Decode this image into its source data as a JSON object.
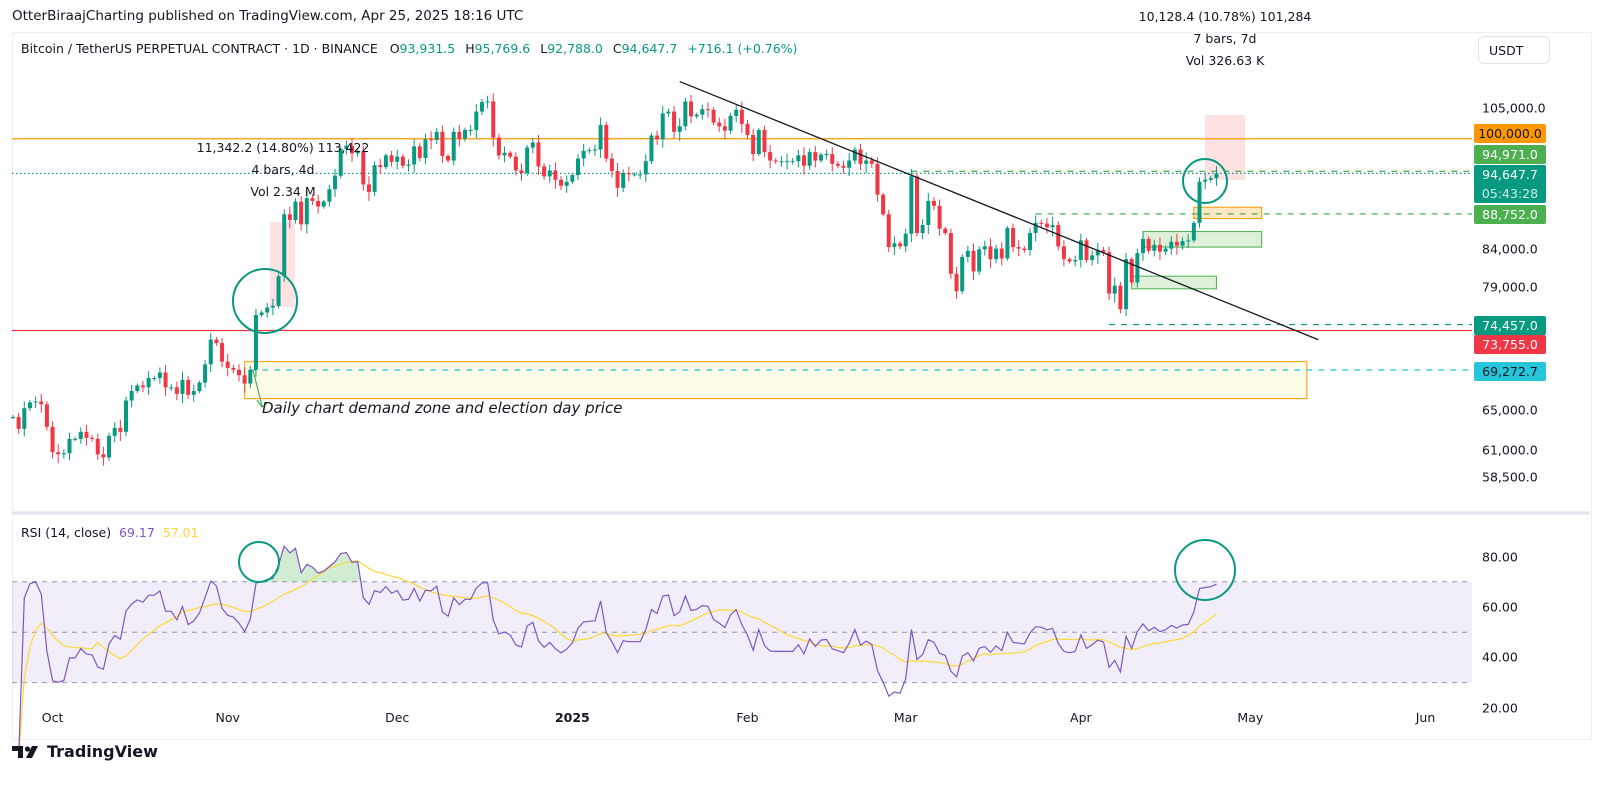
{
  "header": {
    "published": "OtterBiraajCharting published on TradingView.com, Apr 25, 2025 18:16 UTC",
    "symbol": "Bitcoin / TetherUS PERPETUAL CONTRACT · 1D · BINANCE",
    "ohlc": {
      "o_label": "O",
      "o": "93,931.5",
      "h_label": "H",
      "h": "95,769.6",
      "l_label": "L",
      "l": "92,788.0",
      "c_label": "C",
      "c": "94,647.7",
      "change": "+716.1 (+0.76%)"
    },
    "currency": "USDT"
  },
  "colors": {
    "up": "#089981",
    "down": "#f23645",
    "rsi": "#7e57c2",
    "rsi_ma": "#fdd835",
    "orange": "#ff9800",
    "cyan": "#26c6da",
    "green_tag": "#4caf50"
  },
  "price_axis": {
    "scale": "log",
    "labels": [
      "105,000.0",
      "84,000.0",
      "79,000.0",
      "65,000.0",
      "61,000.0",
      "58,500.0"
    ],
    "label_values": [
      105000,
      84000,
      79000,
      65000,
      61000,
      58500
    ],
    "tags": [
      {
        "text": "100,000.0",
        "color": "#ff9800",
        "text_color": "#131722"
      },
      {
        "text": "94,971.0",
        "color": "#4caf50"
      },
      {
        "text": "94,647.7",
        "sub": "05:43:28",
        "color": "#089981"
      },
      {
        "text": "88,752.0",
        "color": "#4caf50"
      },
      {
        "text": "74,457.0",
        "color": "#089981"
      },
      {
        "text": "73,755.0",
        "color": "#f23645"
      },
      {
        "text": "69,272.7",
        "color": "#26c6da",
        "text_color": "#131722"
      }
    ]
  },
  "levels": [
    {
      "price": 100000,
      "style": "solid",
      "color": "#ff9800"
    },
    {
      "price": 73755,
      "style": "solid",
      "color": "#f23645"
    },
    {
      "price": 94647.7,
      "style": "dotted",
      "color": "#089981"
    },
    {
      "price": 94971,
      "style": "dashed",
      "color": "#4caf50",
      "from": "2025-03-02"
    },
    {
      "price": 88752,
      "style": "dashed",
      "color": "#4caf50",
      "from": "2025-03-24"
    },
    {
      "price": 74457,
      "style": "dashed",
      "color": "#089981",
      "from": "2025-04-06"
    },
    {
      "price": 69272.7,
      "style": "dashed",
      "color": "#26c6da",
      "from": "2024-11-05"
    }
  ],
  "annotations": {
    "demand_zone_note": "Daily chart demand zone and election day price",
    "measure_1": {
      "line1": "11,342.2 (14.80%) 113,422",
      "line2": "4 bars, 4d",
      "line3": "Vol 2.34 M"
    },
    "measure_2": {
      "line1": "10,128.4 (10.78%) 101,284",
      "line2": "7 bars, 7d",
      "line3": "Vol 326.63 K"
    }
  },
  "rsi": {
    "label": "RSI (14, close)",
    "value": "69.17",
    "ma_value": "57.01",
    "axis_labels": [
      "80.00",
      "60.00",
      "40.00",
      "20.00"
    ],
    "axis_values": [
      80,
      60,
      40,
      20
    ],
    "bands": [
      70,
      50,
      30
    ]
  },
  "time_axis": [
    {
      "label": "Oct",
      "date": "2024-10-01"
    },
    {
      "label": "Nov",
      "date": "2024-11-01"
    },
    {
      "label": "Dec",
      "date": "2024-12-01"
    },
    {
      "label": "2025",
      "date": "2025-01-01",
      "bold": true
    },
    {
      "label": "Feb",
      "date": "2025-02-01"
    },
    {
      "label": "Mar",
      "date": "2025-03-01"
    },
    {
      "label": "Apr",
      "date": "2025-04-01"
    },
    {
      "label": "May",
      "date": "2025-05-01"
    },
    {
      "label": "Jun",
      "date": "2025-06-01"
    }
  ],
  "footer": {
    "brand": "TradingView"
  },
  "chart_data": {
    "type": "candlestick",
    "title": "Bitcoin / TetherUS PERPETUAL CONTRACT · 1D · BINANCE",
    "y_scale": "log",
    "last_candle": {
      "open": 93931.5,
      "high": 95769.6,
      "low": 92788.0,
      "close": 94647.7
    },
    "daily_closes": [
      {
        "month": "2024-09",
        "first_day": 24,
        "close": [
          64300,
          63100,
          65200,
          65800,
          65900,
          65600,
          63300
        ]
      },
      {
        "month": "2024-10",
        "first_day": 1,
        "close": [
          60800,
          60600,
          60700,
          62100,
          62100,
          62800,
          62200,
          62100,
          60600,
          60300,
          62400,
          63200,
          62800,
          66000,
          67000,
          67600,
          67400,
          68400,
          68400,
          69000,
          67400,
          67400,
          66700,
          68200,
          66600,
          67000,
          67900,
          69900,
          72700,
          72300,
          70200
        ]
      },
      {
        "month": "2024-11",
        "first_day": 1,
        "close": [
          69500,
          69300,
          68700,
          67800,
          69300,
          75600,
          75900,
          76500,
          76700,
          80400,
          88700,
          87900,
          90500,
          87300,
          91000,
          90600,
          89800,
          90500,
          92300,
          94300,
          98400,
          98900,
          97700,
          98000,
          93000,
          91900,
          95900,
          95600,
          97400,
          96400
        ]
      },
      {
        "month": "2024-12",
        "first_day": 1,
        "close": [
          97200,
          95800,
          96000,
          98800,
          97000,
          99900,
          99800,
          101100,
          97300,
          96600,
          101100,
          100000,
          101400,
          101400,
          104400,
          106000,
          106100,
          100200,
          97400,
          97800,
          97200,
          95100,
          94700,
          98600,
          99400,
          95700,
          94200,
          95100,
          93700,
          92800,
          93400
        ]
      },
      {
        "month": "2025-01",
        "first_day": 1,
        "close": [
          94400,
          96900,
          98100,
          98200,
          98300,
          102200,
          96900,
          95000,
          92500,
          94700,
          94500,
          94500,
          94500,
          96500,
          100500,
          99900,
          104100,
          104400,
          101100,
          102000,
          106100,
          103600,
          103900,
          104800,
          104700,
          102600,
          102000,
          101300,
          103700,
          104700,
          102400
        ]
      },
      {
        "month": "2025-02",
        "first_day": 1,
        "close": [
          100600,
          97600,
          101400,
          97900,
          96600,
          96500,
          96500,
          96500,
          96500,
          97400,
          95800,
          97900,
          96600,
          97500,
          97600,
          96100,
          95800,
          95500,
          96600,
          98300,
          96100,
          96600,
          96100,
          91500,
          88700,
          84200,
          84700,
          84300
        ]
      },
      {
        "month": "2025-03",
        "first_day": 1,
        "close": [
          86000,
          94200,
          86100,
          87200,
          90600,
          89900,
          86700,
          86100,
          80700,
          78500,
          82900,
          83700,
          81000,
          83900,
          84300,
          82600,
          84000,
          82700,
          86800,
          84200,
          84000,
          83800,
          86100,
          87500,
          87400,
          86900,
          87200,
          84300,
          82600,
          82300,
          82500
        ]
      },
      {
        "month": "2025-04",
        "first_day": 1,
        "close": [
          85100,
          82500,
          83100,
          83800,
          83500,
          78200,
          79200,
          76300,
          82600,
          79600,
          83400,
          85300,
          83700,
          84500,
          83600,
          84000,
          84900,
          84400,
          85000,
          85100,
          87500,
          93400,
          93700,
          93931.5,
          94647.7
        ]
      }
    ],
    "trendline": {
      "from": {
        "date": "2025-01-20",
        "price": 109500
      },
      "to": {
        "date": "2025-05-13",
        "price": 72700
      }
    },
    "zones": [
      {
        "name": "demand-zone",
        "from": "2024-11-04",
        "to": "2025-05-11",
        "high": 70200,
        "low": 66200,
        "fill": "#fffde7",
        "border": "#ff9800"
      },
      {
        "name": "orange-box",
        "from": "2025-04-21",
        "to": "2025-05-03",
        "high": 89700,
        "low": 88100,
        "fill": "#ffe9c4",
        "border": "#ff9800"
      },
      {
        "name": "green-box-1",
        "from": "2025-04-12",
        "to": "2025-05-03",
        "high": 86300,
        "low": 84200,
        "fill": "#dff0d8",
        "border": "#4caf50"
      },
      {
        "name": "green-box-2",
        "from": "2025-04-10",
        "to": "2025-04-25",
        "high": 80400,
        "low": 78800,
        "fill": "#dff0d8",
        "border": "#4caf50"
      }
    ]
  }
}
